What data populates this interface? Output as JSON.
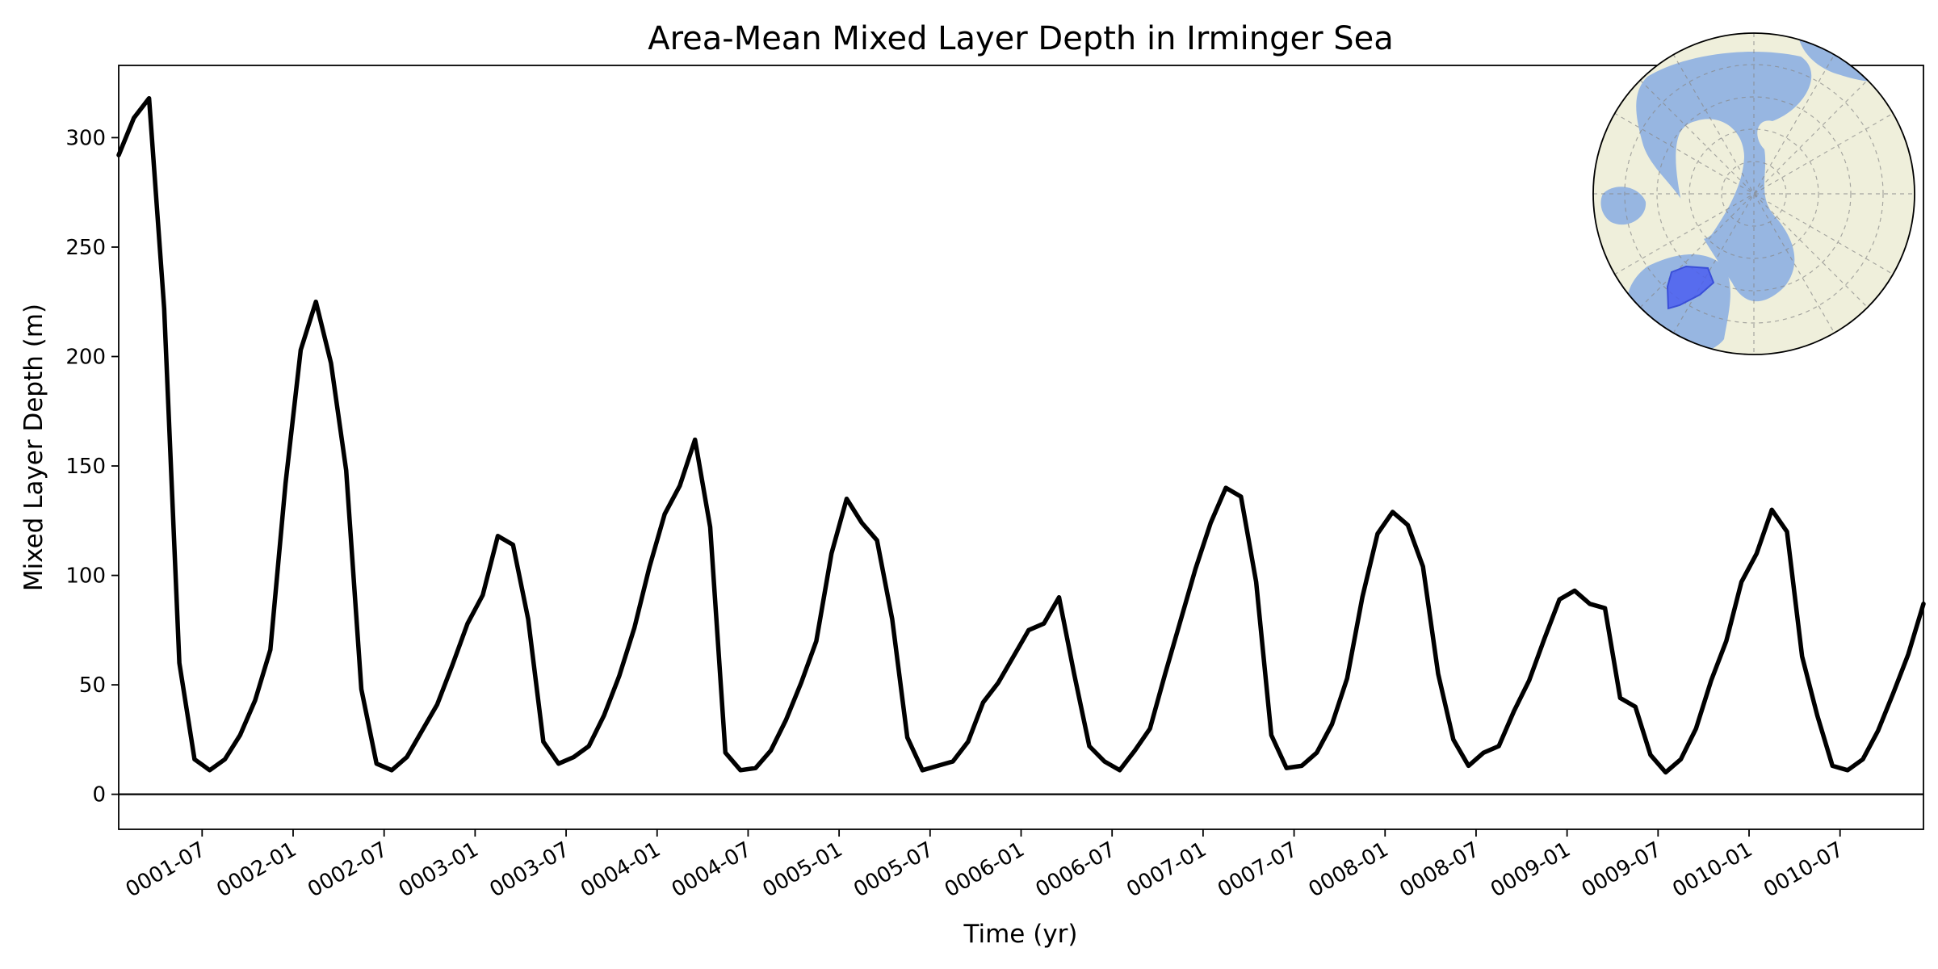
{
  "chart_data": {
    "type": "line",
    "title": "Area-Mean Mixed Layer Depth in Irminger Sea",
    "xlabel": "Time (yr)",
    "ylabel": "Mixed Layer Depth (m)",
    "ylim": [
      -16,
      333
    ],
    "xlim_month_index": [
      0,
      119
    ],
    "yticks": [
      0,
      50,
      100,
      150,
      200,
      250,
      300
    ],
    "xticks": [
      {
        "label": "0001-07",
        "month_index": 5.5
      },
      {
        "label": "0002-01",
        "month_index": 11.5
      },
      {
        "label": "0002-07",
        "month_index": 17.5
      },
      {
        "label": "0003-01",
        "month_index": 23.5
      },
      {
        "label": "0003-07",
        "month_index": 29.5
      },
      {
        "label": "0004-01",
        "month_index": 35.5
      },
      {
        "label": "0004-07",
        "month_index": 41.5
      },
      {
        "label": "0005-01",
        "month_index": 47.5
      },
      {
        "label": "0005-07",
        "month_index": 53.5
      },
      {
        "label": "0006-01",
        "month_index": 59.5
      },
      {
        "label": "0006-07",
        "month_index": 65.5
      },
      {
        "label": "0007-01",
        "month_index": 71.5
      },
      {
        "label": "0007-07",
        "month_index": 77.5
      },
      {
        "label": "0008-01",
        "month_index": 83.5
      },
      {
        "label": "0008-07",
        "month_index": 89.5
      },
      {
        "label": "0009-01",
        "month_index": 95.5
      },
      {
        "label": "0009-07",
        "month_index": 101.5
      },
      {
        "label": "0010-01",
        "month_index": 107.5
      },
      {
        "label": "0010-07",
        "month_index": 113.5
      }
    ],
    "reference_line_y": 0,
    "series": [
      {
        "values": [
          292,
          309,
          318,
          222,
          60,
          16,
          11,
          16,
          27,
          43,
          66,
          142,
          203,
          225,
          197,
          148,
          48,
          14,
          11,
          17,
          29,
          41,
          59,
          78,
          91,
          118,
          114,
          80,
          24,
          14,
          17,
          22,
          36,
          54,
          76,
          104,
          128,
          141,
          162,
          122,
          19,
          11,
          12,
          20,
          34,
          51,
          70,
          110,
          135,
          124,
          116,
          80,
          26,
          11,
          13,
          15,
          24,
          42,
          51,
          63,
          75,
          78,
          90,
          55,
          22,
          15,
          11,
          20,
          30,
          55,
          79,
          103,
          124,
          140,
          136,
          97,
          27,
          12,
          13,
          19,
          32,
          53,
          90,
          119,
          129,
          123,
          104,
          55,
          25,
          13,
          19,
          22,
          38,
          52,
          71,
          89,
          93,
          87,
          85,
          44,
          40,
          18,
          10,
          16,
          30,
          52,
          70,
          97,
          110,
          130,
          120,
          63,
          36,
          13,
          11,
          16,
          29,
          46,
          64,
          87
        ],
        "color": "#000000"
      }
    ],
    "grid": false,
    "inset_map": {
      "projection": "north-polar-stereographic",
      "ocean_color": "#97b6e1",
      "land_color": "#efefdb",
      "region_color": "#4b5ff0"
    }
  }
}
